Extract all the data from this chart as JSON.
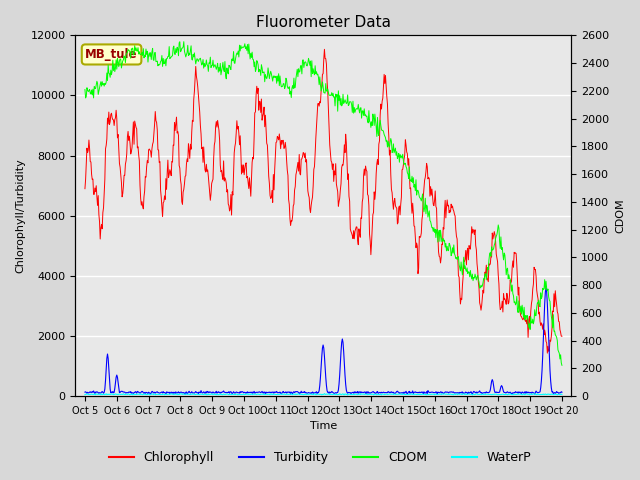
{
  "title": "Fluorometer Data",
  "xlabel": "Time",
  "ylabel_left": "Chlorophyll/Turbidity",
  "ylabel_right": "CDOM",
  "ylim_left": [
    0,
    12000
  ],
  "ylim_right": [
    0,
    2600
  ],
  "xtick_labels": [
    "Oct 5",
    "Oct 6",
    "Oct 7",
    "Oct 8",
    "Oct 9",
    "Oct 10",
    "Oct 11",
    "Oct 12",
    "Oct 13",
    "Oct 14",
    "Oct 15",
    "Oct 16",
    "Oct 17",
    "Oct 18",
    "Oct 19",
    "Oct 20"
  ],
  "annotation_text": "MB_tule",
  "annotation_bg": "#ffffcc",
  "annotation_border": "#aaaa00",
  "fig_bg": "#d8d8d8",
  "plot_bg": "#e8e8e8",
  "title_fontsize": 11,
  "axis_label_fontsize": 8,
  "tick_fontsize": 8,
  "legend_fontsize": 9,
  "chl_color": "red",
  "turb_color": "blue",
  "cdom_color": "lime",
  "waterp_color": "cyan"
}
